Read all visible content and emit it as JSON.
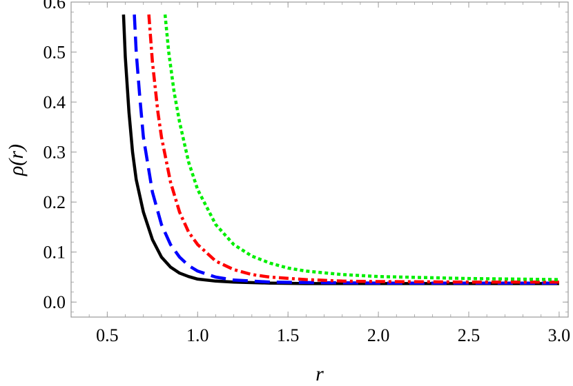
{
  "chart_data": {
    "type": "line",
    "xlabel": "r",
    "ylabel": "ρ(r)",
    "xlim": [
      0.3,
      3.05
    ],
    "ylim": [
      -0.03,
      0.6
    ],
    "xticks": [
      "0.5",
      "1.0",
      "1.5",
      "2.0",
      "2.5",
      "3.0"
    ],
    "yticks": [
      "0.0",
      "0.1",
      "0.2",
      "0.3",
      "0.4",
      "0.5",
      "0.6"
    ],
    "grid": false,
    "legend": "none",
    "series": [
      {
        "color": "#000000",
        "style": "solid",
        "points": [
          [
            0.59,
            0.575
          ],
          [
            0.6,
            0.49
          ],
          [
            0.62,
            0.38
          ],
          [
            0.64,
            0.3
          ],
          [
            0.66,
            0.245
          ],
          [
            0.7,
            0.18
          ],
          [
            0.75,
            0.125
          ],
          [
            0.8,
            0.09
          ],
          [
            0.85,
            0.07
          ],
          [
            0.9,
            0.058
          ],
          [
            0.95,
            0.051
          ],
          [
            1.0,
            0.046
          ],
          [
            1.1,
            0.042
          ],
          [
            1.2,
            0.04
          ],
          [
            1.4,
            0.038
          ],
          [
            1.6,
            0.037
          ],
          [
            2.0,
            0.037
          ],
          [
            2.5,
            0.037
          ],
          [
            3.0,
            0.037
          ]
        ]
      },
      {
        "color": "#0000ff",
        "style": "dashed",
        "points": [
          [
            0.65,
            0.575
          ],
          [
            0.66,
            0.5
          ],
          [
            0.68,
            0.41
          ],
          [
            0.7,
            0.33
          ],
          [
            0.75,
            0.22
          ],
          [
            0.8,
            0.155
          ],
          [
            0.85,
            0.115
          ],
          [
            0.9,
            0.09
          ],
          [
            0.95,
            0.073
          ],
          [
            1.0,
            0.062
          ],
          [
            1.1,
            0.05
          ],
          [
            1.2,
            0.044
          ],
          [
            1.4,
            0.04
          ],
          [
            1.6,
            0.039
          ],
          [
            2.0,
            0.038
          ],
          [
            2.5,
            0.038
          ],
          [
            3.0,
            0.038
          ]
        ]
      },
      {
        "color": "#ff0000",
        "style": "dot-dashed",
        "points": [
          [
            0.73,
            0.575
          ],
          [
            0.75,
            0.48
          ],
          [
            0.78,
            0.38
          ],
          [
            0.8,
            0.33
          ],
          [
            0.85,
            0.24
          ],
          [
            0.9,
            0.18
          ],
          [
            0.95,
            0.14
          ],
          [
            1.0,
            0.115
          ],
          [
            1.1,
            0.082
          ],
          [
            1.2,
            0.065
          ],
          [
            1.3,
            0.055
          ],
          [
            1.4,
            0.05
          ],
          [
            1.6,
            0.045
          ],
          [
            1.8,
            0.042
          ],
          [
            2.0,
            0.041
          ],
          [
            2.5,
            0.04
          ],
          [
            3.0,
            0.04
          ]
        ]
      },
      {
        "color": "#00ee00",
        "style": "dotted",
        "points": [
          [
            0.82,
            0.575
          ],
          [
            0.84,
            0.5
          ],
          [
            0.87,
            0.42
          ],
          [
            0.9,
            0.36
          ],
          [
            0.95,
            0.28
          ],
          [
            1.0,
            0.225
          ],
          [
            1.1,
            0.155
          ],
          [
            1.2,
            0.115
          ],
          [
            1.3,
            0.092
          ],
          [
            1.4,
            0.078
          ],
          [
            1.5,
            0.068
          ],
          [
            1.6,
            0.062
          ],
          [
            1.8,
            0.055
          ],
          [
            2.0,
            0.051
          ],
          [
            2.5,
            0.047
          ],
          [
            3.0,
            0.045
          ]
        ]
      }
    ]
  }
}
